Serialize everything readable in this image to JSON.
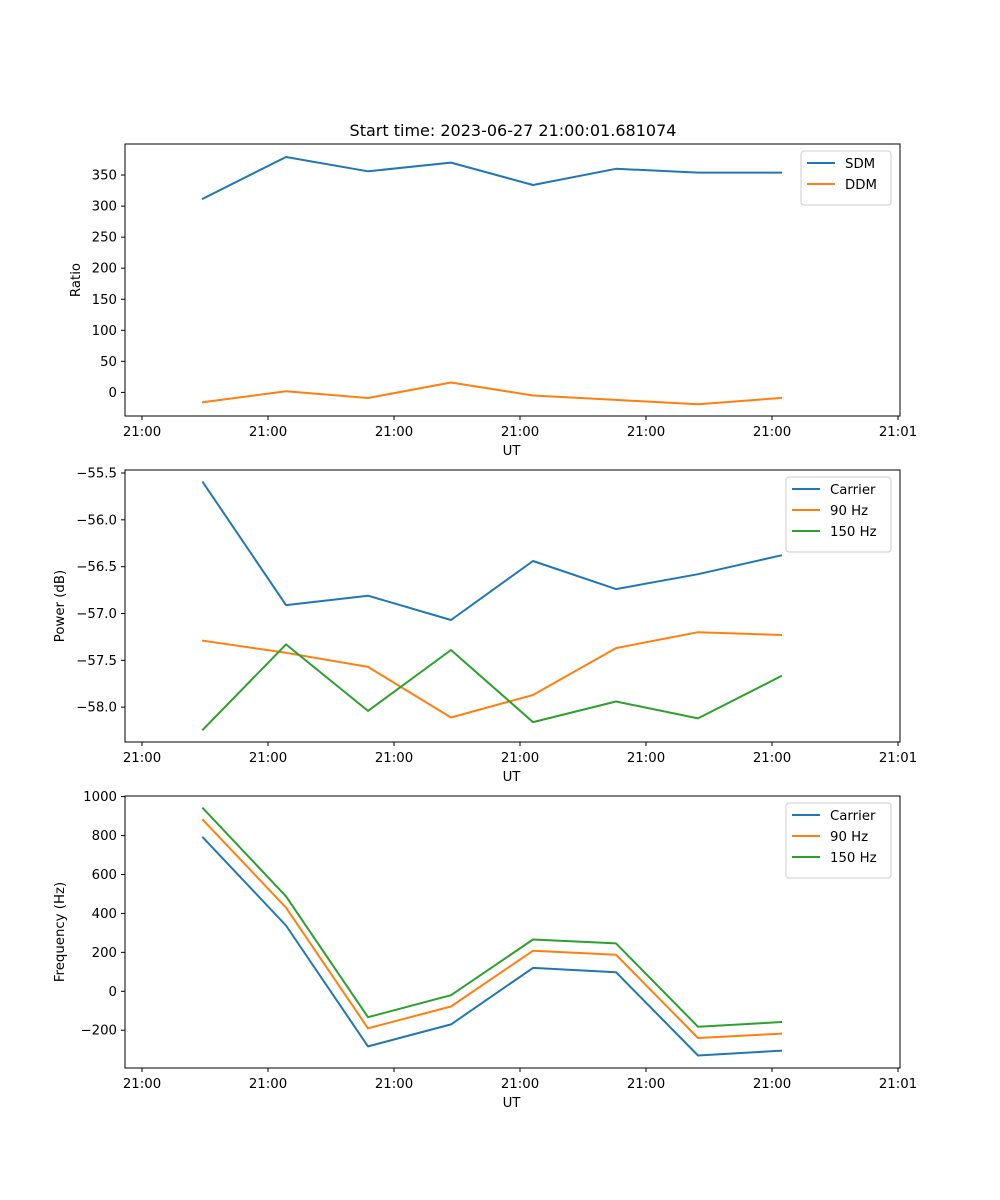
{
  "figure": {
    "title": "Start time: 2023-06-27 21:00:01.681074"
  },
  "chart_data": [
    {
      "type": "line",
      "title": "Start time: 2023-06-27 21:00:01.681074",
      "xlabel": "UT",
      "ylabel": "Ratio",
      "x_tick_labels": [
        "21:00",
        "21:00",
        "21:00",
        "21:00",
        "21:00",
        "21:00",
        "21:01"
      ],
      "y_ticks": [
        0,
        50,
        100,
        150,
        200,
        250,
        300,
        350
      ],
      "y_tick_labels": [
        "0",
        "50",
        "100",
        "150",
        "200",
        "250",
        "300",
        "350"
      ],
      "ylim": [
        -38,
        400
      ],
      "grid": false,
      "legend": "top-right",
      "series": [
        {
          "name": "SDM",
          "color": "#1f77b4",
          "values": [
            312,
            379,
            356,
            370,
            334,
            360,
            354,
            354
          ]
        },
        {
          "name": "DDM",
          "color": "#ff7f0e",
          "values": [
            -16,
            2,
            -9,
            16,
            -5,
            -12,
            -19,
            -9
          ]
        }
      ]
    },
    {
      "type": "line",
      "title": "",
      "xlabel": "UT",
      "ylabel": "Power (dB)",
      "x_tick_labels": [
        "21:00",
        "21:00",
        "21:00",
        "21:00",
        "21:00",
        "21:00",
        "21:01"
      ],
      "y_ticks": [
        -58.0,
        -57.5,
        -57.0,
        -56.5,
        -56.0,
        -55.5
      ],
      "y_tick_labels": [
        "−58.0",
        "−57.5",
        "−57.0",
        "−56.5",
        "−56.0",
        "−55.5"
      ],
      "ylim": [
        -58.372,
        -55.468
      ],
      "grid": false,
      "legend": "top-right",
      "series": [
        {
          "name": "Carrier",
          "color": "#1f77b4",
          "values": [
            -55.6,
            -56.91,
            -56.81,
            -57.07,
            -56.44,
            -56.74,
            -56.58,
            -56.38
          ]
        },
        {
          "name": "90 Hz",
          "color": "#ff7f0e",
          "values": [
            -57.29,
            -57.42,
            -57.57,
            -58.11,
            -57.87,
            -57.37,
            -57.2,
            -57.23
          ]
        },
        {
          "name": "150 Hz",
          "color": "#2ca02c",
          "values": [
            -58.24,
            -57.33,
            -58.04,
            -57.39,
            -58.16,
            -57.94,
            -58.12,
            -57.67
          ]
        }
      ]
    },
    {
      "type": "line",
      "title": "",
      "xlabel": "UT",
      "ylabel": "Frequency (Hz)",
      "x_tick_labels": [
        "21:00",
        "21:00",
        "21:00",
        "21:00",
        "21:00",
        "21:00",
        "21:01"
      ],
      "y_ticks": [
        -200,
        0,
        200,
        400,
        600,
        800,
        1000
      ],
      "y_tick_labels": [
        "−200",
        "0",
        "200",
        "400",
        "600",
        "800",
        "1000"
      ],
      "ylim": [
        -394,
        1003
      ],
      "grid": false,
      "legend": "top-right",
      "series": [
        {
          "name": "Carrier",
          "color": "#1f77b4",
          "values": [
            790,
            338,
            -283,
            -170,
            120,
            98,
            -330,
            -305
          ]
        },
        {
          "name": "90 Hz",
          "color": "#ff7f0e",
          "values": [
            880,
            430,
            -190,
            -78,
            208,
            188,
            -240,
            -218
          ]
        },
        {
          "name": "150 Hz",
          "color": "#2ca02c",
          "values": [
            940,
            488,
            -133,
            -20,
            266,
            246,
            -182,
            -158
          ]
        }
      ]
    }
  ]
}
